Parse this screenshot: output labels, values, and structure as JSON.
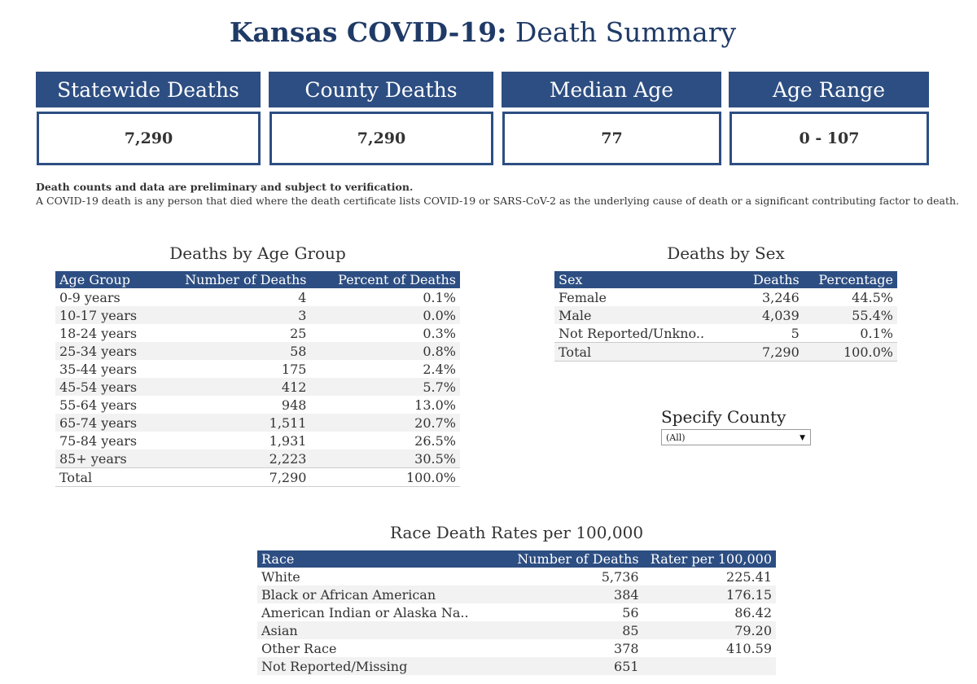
{
  "title": {
    "bold": "Kansas COVID-19:",
    "rest": " Death Summary"
  },
  "kpis": [
    {
      "label": "Statewide Deaths",
      "value": "7,290"
    },
    {
      "label": "County Deaths",
      "value": "7,290"
    },
    {
      "label": "Median Age",
      "value": "77"
    },
    {
      "label": "Age Range",
      "value": "0 - 107"
    }
  ],
  "notes": {
    "line1": "Death counts and data are preliminary and subject to verification.",
    "line2": "A COVID-19 death is any person that died where the death certificate lists COVID-19 or SARS-CoV-2 as the underlying cause of death or a significant contributing factor to death."
  },
  "age_table": {
    "title": "Deaths by Age Group",
    "headers": [
      "Age Group",
      "Number of Deaths",
      "Percent of Deaths"
    ],
    "rows": [
      [
        "0-9 years",
        "4",
        "0.1%"
      ],
      [
        "10-17 years",
        "3",
        "0.0%"
      ],
      [
        "18-24 years",
        "25",
        "0.3%"
      ],
      [
        "25-34 years",
        "58",
        "0.8%"
      ],
      [
        "35-44 years",
        "175",
        "2.4%"
      ],
      [
        "45-54 years",
        "412",
        "5.7%"
      ],
      [
        "55-64 years",
        "948",
        "13.0%"
      ],
      [
        "65-74 years",
        "1,511",
        "20.7%"
      ],
      [
        "75-84 years",
        "1,931",
        "26.5%"
      ],
      [
        "85+ years",
        "2,223",
        "30.5%"
      ]
    ],
    "total": [
      "Total",
      "7,290",
      "100.0%"
    ]
  },
  "sex_table": {
    "title": "Deaths by Sex",
    "headers": [
      "Sex",
      "Deaths",
      "Percentage"
    ],
    "rows": [
      [
        "Female",
        "3,246",
        "44.5%"
      ],
      [
        "Male",
        "4,039",
        "55.4%"
      ],
      [
        "Not Reported/Unkno..",
        "5",
        "0.1%"
      ]
    ],
    "total": [
      "Total",
      "7,290",
      "100.0%"
    ]
  },
  "county_filter": {
    "label": "Specify County",
    "value": "(All)"
  },
  "race_table": {
    "title": "Race Death Rates per 100,000",
    "headers": [
      "Race",
      "Number of Deaths",
      "Rater per 100,000"
    ],
    "rows": [
      [
        "White",
        "5,736",
        "225.41"
      ],
      [
        "Black or African American",
        "384",
        "176.15"
      ],
      [
        "American Indian or Alaska Na..",
        "56",
        "86.42"
      ],
      [
        "Asian",
        "85",
        "79.20"
      ],
      [
        "Other Race",
        "378",
        "410.59"
      ],
      [
        "Not Reported/Missing",
        "651",
        ""
      ]
    ]
  }
}
